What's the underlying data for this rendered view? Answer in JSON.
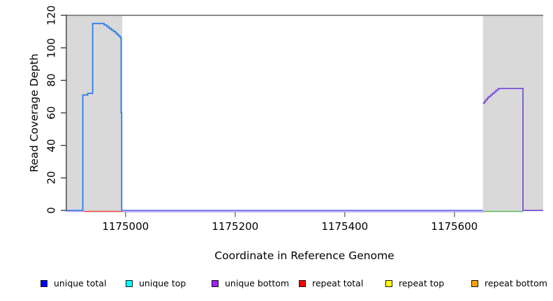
{
  "chart_data": {
    "type": "line",
    "subtype": "step-coverage-plot",
    "title": "",
    "xlabel": "Coordinate in Reference Genome",
    "ylabel": "Read Coverage Depth",
    "xlim": [
      1174892,
      1175762
    ],
    "ylim": [
      0,
      120
    ],
    "x_ticks": [
      1175000,
      1175200,
      1175400,
      1175600
    ],
    "y_ticks": [
      0,
      20,
      40,
      60,
      80,
      100,
      120
    ],
    "grid": false,
    "axis_color": "#333333",
    "shaded_regions": [
      {
        "name": "repeat-region-left",
        "start": 1174892,
        "end": 1174994,
        "color": "#d9d9d9"
      },
      {
        "name": "repeat-region-right",
        "start": 1175652,
        "end": 1175762,
        "color": "#d9d9d9"
      }
    ],
    "top_boundary_line": {
      "y": 120,
      "color": "#8a8a8a",
      "width": 2
    },
    "series": [
      {
        "name": "unique-total-left-block",
        "color": "#2e7ceb",
        "width": 1.8,
        "dy": 0,
        "end": 1174994,
        "points": [
          [
            1174892,
            0
          ],
          [
            1174922,
            71
          ],
          [
            1174931,
            72
          ],
          [
            1174940,
            115
          ],
          [
            1174961,
            114
          ],
          [
            1174966,
            113
          ],
          [
            1174970,
            112
          ],
          [
            1174974,
            111
          ],
          [
            1174978,
            110
          ],
          [
            1174982,
            109
          ],
          [
            1174985,
            108
          ],
          [
            1174988,
            107
          ],
          [
            1174991,
            106
          ],
          [
            1174992,
            60
          ],
          [
            1174993,
            0
          ]
        ]
      },
      {
        "name": "unique-bottom-right-block",
        "color": "#7a4fd6",
        "width": 1.8,
        "dy": 0,
        "end": 1175762,
        "points": [
          [
            1175652,
            66
          ],
          [
            1175655,
            67
          ],
          [
            1175657,
            68
          ],
          [
            1175660,
            69
          ],
          [
            1175662,
            70
          ],
          [
            1175666,
            71
          ],
          [
            1175669,
            72
          ],
          [
            1175673,
            73
          ],
          [
            1175676,
            74
          ],
          [
            1175680,
            75
          ],
          [
            1175725,
            0
          ]
        ]
      },
      {
        "name": "baseline-overlap-left",
        "color": "#bfa8f2",
        "width": 1.6,
        "dy": 1.5,
        "end": 1174925,
        "points": [
          [
            1174892,
            0
          ]
        ]
      },
      {
        "name": "repeat-total-baseline",
        "color": "#e84343",
        "width": 1.6,
        "dy": 1.5,
        "end": 1174994,
        "points": [
          [
            1174924,
            0
          ]
        ]
      },
      {
        "name": "baseline-overlap-mid-upper",
        "color": "#5d54ef",
        "width": 1.5,
        "dy": 0,
        "end": 1175652,
        "points": [
          [
            1174994,
            0
          ]
        ]
      },
      {
        "name": "baseline-overlap-mid-lower",
        "color": "#aba4f4",
        "width": 1.4,
        "dy": 2,
        "end": 1175652,
        "points": [
          [
            1174994,
            0
          ]
        ]
      },
      {
        "name": "baseline-overlap-right-green",
        "color": "#5cb85c",
        "width": 1.6,
        "dy": 1.5,
        "end": 1175725,
        "points": [
          [
            1175652,
            0
          ]
        ]
      }
    ]
  },
  "legend": {
    "items": [
      {
        "label": "unique total",
        "color": "#0000ff"
      },
      {
        "label": "unique top",
        "color": "#00ffff"
      },
      {
        "label": "unique bottom",
        "color": "#a020f0"
      },
      {
        "label": "repeat total",
        "color": "#ff0000"
      },
      {
        "label": "repeat top",
        "color": "#ffff00"
      },
      {
        "label": "repeat bottom",
        "color": "#ffa500"
      }
    ]
  }
}
